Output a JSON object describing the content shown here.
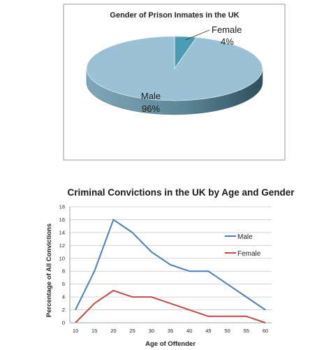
{
  "chart_data": [
    {
      "type": "pie",
      "title": "Gender of Prison Inmates in the UK",
      "slices": [
        {
          "label": "Female",
          "value": 4,
          "value_label": "4%",
          "color": "#4a9bb4"
        },
        {
          "label": "Male",
          "value": 96,
          "value_label": "96%",
          "color": "#9bc2d4"
        }
      ],
      "style": "3d",
      "side_color": "#5c8c9e"
    },
    {
      "type": "line",
      "title": "Criminal Convictions in the UK by Age and Gender",
      "xlabel": "Age of Offender",
      "ylabel": "Percentage of All Convictions",
      "x": [
        10,
        15,
        20,
        25,
        30,
        35,
        40,
        45,
        50,
        55,
        60
      ],
      "ylim": [
        0,
        18
      ],
      "yticks": [
        0,
        2,
        4,
        6,
        8,
        10,
        12,
        14,
        16,
        18
      ],
      "grid": true,
      "legend_position": "right",
      "series": [
        {
          "name": "Male",
          "color": "#4a7ebb",
          "values": [
            2,
            8,
            16,
            14,
            11,
            9,
            8,
            8,
            6,
            4,
            2
          ]
        },
        {
          "name": "Female",
          "color": "#be4b48",
          "values": [
            0,
            3,
            5,
            4,
            4,
            3,
            2,
            1,
            1,
            1,
            0
          ]
        }
      ]
    }
  ]
}
